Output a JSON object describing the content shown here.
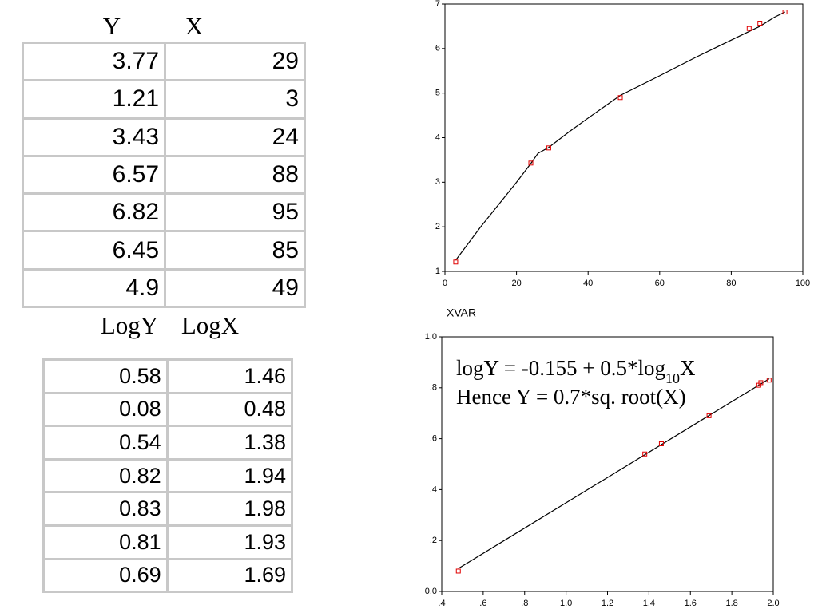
{
  "tables": [
    {
      "headers": [
        "Y",
        "X"
      ],
      "rows": [
        [
          3.77,
          29
        ],
        [
          1.21,
          3
        ],
        [
          3.43,
          24
        ],
        [
          6.57,
          88
        ],
        [
          6.82,
          95
        ],
        [
          6.45,
          85
        ],
        [
          4.9,
          49
        ]
      ]
    },
    {
      "headers": [
        "LogY",
        "LogX"
      ],
      "rows": [
        [
          0.58,
          1.46
        ],
        [
          0.08,
          0.48
        ],
        [
          0.54,
          1.38
        ],
        [
          0.82,
          1.94
        ],
        [
          0.83,
          1.98
        ],
        [
          0.81,
          1.93
        ],
        [
          0.69,
          1.69
        ]
      ]
    }
  ],
  "chart_data": [
    {
      "type": "scatter",
      "x_label": "XVAR",
      "xlim": [
        0,
        100
      ],
      "xticks": [
        0,
        20,
        40,
        60,
        80,
        100
      ],
      "ylim": [
        1,
        7
      ],
      "yticks": [
        1,
        2,
        3,
        4,
        5,
        6,
        7
      ],
      "series": [
        {
          "type": "line",
          "color": "#000000",
          "x": [
            3,
            10,
            20,
            24,
            26,
            29,
            35,
            40,
            49,
            60,
            70,
            80,
            88,
            92,
            95
          ],
          "values": [
            1.25,
            2.0,
            3.0,
            3.42,
            3.65,
            3.78,
            4.15,
            4.44,
            4.95,
            5.39,
            5.8,
            6.19,
            6.5,
            6.7,
            6.82
          ]
        },
        {
          "type": "scatter",
          "color": "#e00000",
          "x": [
            29,
            3,
            24,
            88,
            95,
            85,
            49
          ],
          "values": [
            3.77,
            1.21,
            3.43,
            6.57,
            6.82,
            6.45,
            4.9
          ]
        }
      ]
    },
    {
      "type": "scatter",
      "annotations": [
        [
          "logY = -0.155  + 0.5*log",
          "10",
          "X"
        ],
        [
          "Hence Y = 0.7*sq. root(X)"
        ]
      ],
      "xlim": [
        0.4,
        2.0
      ],
      "xticks": [
        {
          "value": 0.4,
          "label": ".4"
        },
        {
          "value": 0.6,
          "label": ".6"
        },
        {
          "value": 0.8,
          "label": ".8"
        },
        {
          "value": 1.0,
          "label": "1.0"
        },
        {
          "value": 1.2,
          "label": "1.2"
        },
        {
          "value": 1.4,
          "label": "1.4"
        },
        {
          "value": 1.6,
          "label": "1.6"
        },
        {
          "value": 1.8,
          "label": "1.8"
        },
        {
          "value": 2.0,
          "label": "2.0"
        }
      ],
      "ylim": [
        0,
        1.0
      ],
      "yticks": [
        {
          "value": 0,
          "label": "0.0"
        },
        {
          "value": 0.2,
          "label": ".2"
        },
        {
          "value": 0.4,
          "label": ".4"
        },
        {
          "value": 0.6,
          "label": ".6"
        },
        {
          "value": 0.8,
          "label": ".8"
        },
        {
          "value": 1.0,
          "label": "1.0"
        }
      ],
      "series": [
        {
          "type": "line",
          "color": "#000000",
          "x": [
            0.48,
            1.98
          ],
          "values": [
            0.09,
            0.835
          ]
        },
        {
          "type": "scatter",
          "color": "#e00000",
          "x": [
            1.46,
            0.48,
            1.38,
            1.94,
            1.98,
            1.93,
            1.69
          ],
          "values": [
            0.58,
            0.08,
            0.54,
            0.82,
            0.83,
            0.81,
            0.69
          ]
        }
      ]
    }
  ]
}
